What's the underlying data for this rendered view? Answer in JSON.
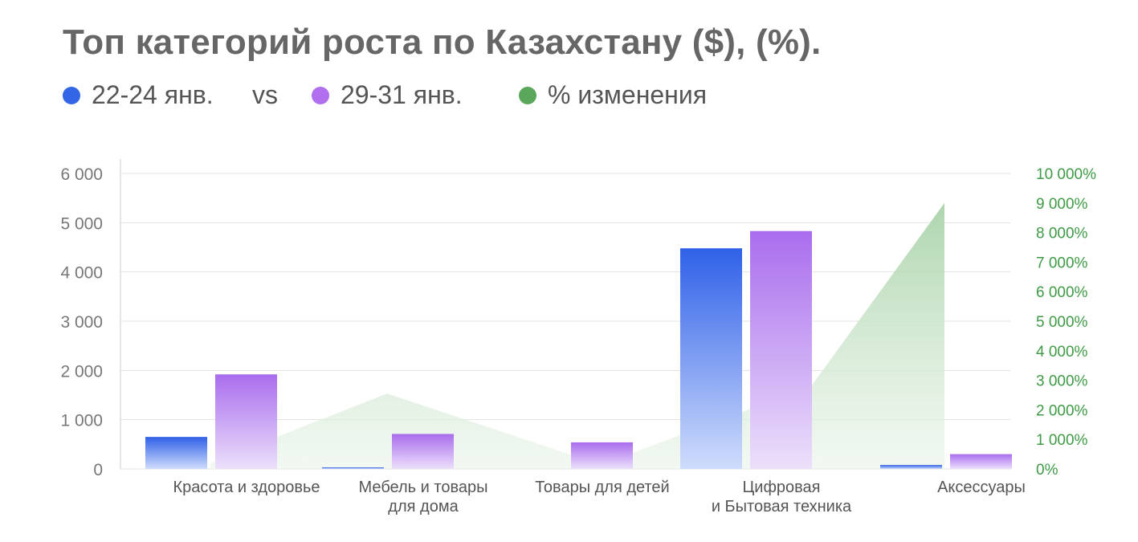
{
  "title": "Топ категорий роста по Казахстану ($), (%).",
  "legend": {
    "items": [
      {
        "label": "22-24 янв.",
        "color": "#3366e6"
      },
      {
        "label": "29-31 янв.",
        "color": "#b070ee"
      },
      {
        "label": "% изменения",
        "color": "#5aa65a"
      }
    ],
    "vs": "vs"
  },
  "chart_data": {
    "type": "bar",
    "categories": [
      [
        "Красота и здоровье"
      ],
      [
        "Мебель и товары",
        "для дома"
      ],
      [
        "Товары для детей"
      ],
      [
        "Цифровая",
        "и Бытовая техника"
      ],
      [
        "Аксессуары"
      ]
    ],
    "series": [
      {
        "name": "22-24 янв.",
        "values": [
          650,
          30,
          0,
          4480,
          80
        ]
      },
      {
        "name": "29-31 янв.",
        "values": [
          1920,
          710,
          540,
          4830,
          300
        ]
      }
    ],
    "change_series": {
      "name": "% изменения",
      "type": "area",
      "values": [
        200,
        2550,
        140,
        2800,
        9000
      ]
    },
    "ylim": [
      0,
      6000
    ],
    "yticks": [
      "0",
      "1 000",
      "2 000",
      "3 000",
      "4 000",
      "5 000",
      "6 000"
    ],
    "y2lim": [
      0,
      10000
    ],
    "y2ticks": [
      "0%",
      "1 000%",
      "2 000%",
      "3 000%",
      "4 000%",
      "5 000%",
      "6 000%",
      "7 000%",
      "8 000%",
      "9 000%",
      "10 000%"
    ],
    "grid": true
  }
}
